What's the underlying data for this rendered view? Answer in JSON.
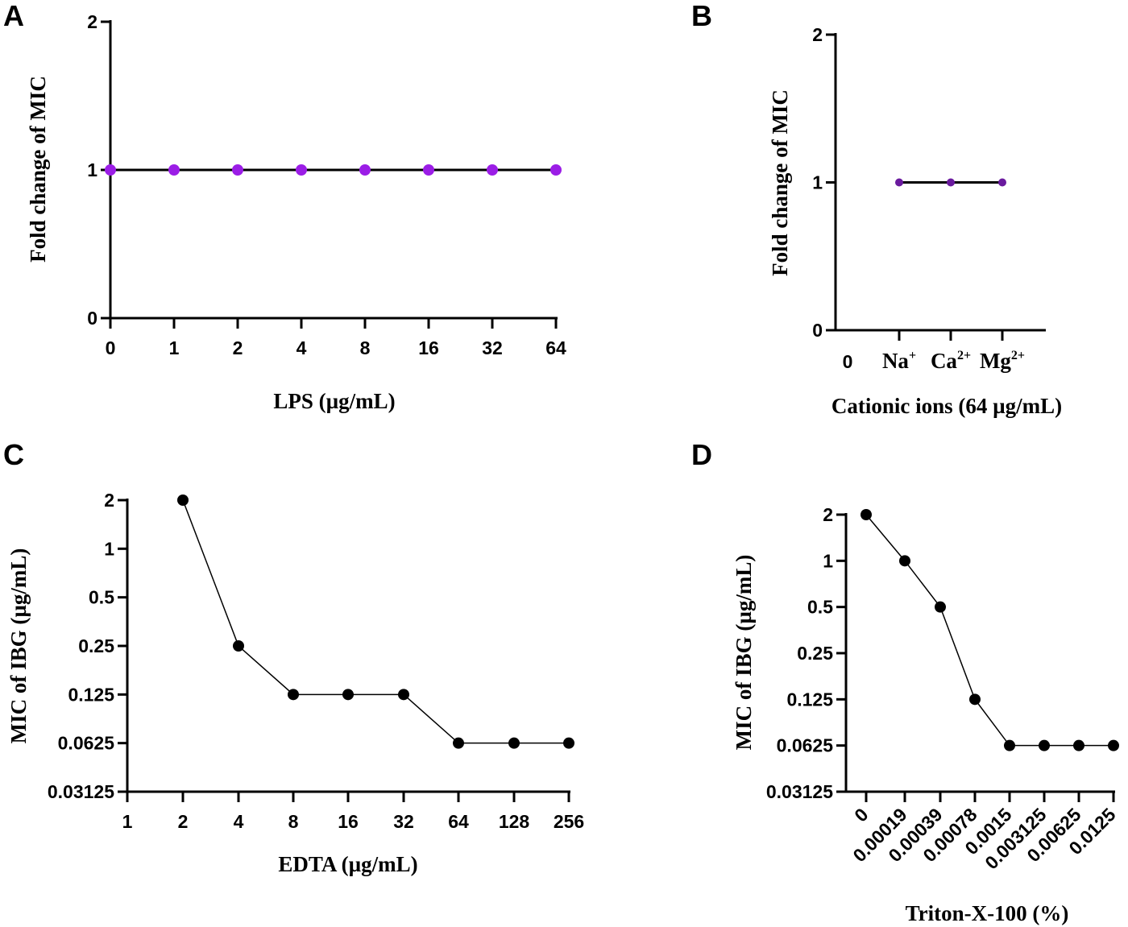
{
  "chart_data": [
    {
      "panel": "A",
      "type": "line",
      "xlabel": "LPS (µg/mL)",
      "ylabel": "Fold change of MIC",
      "categories": [
        "0",
        "1",
        "2",
        "4",
        "8",
        "16",
        "32",
        "64"
      ],
      "values": [
        1,
        1,
        1,
        1,
        1,
        1,
        1,
        1
      ],
      "yticks": [
        "0",
        "1",
        "2"
      ],
      "ylim": [
        0,
        2
      ],
      "color": "#9b1de6"
    },
    {
      "panel": "B",
      "type": "line",
      "xlabel": "Cationic ions (64 µg/mL)",
      "ylabel": "Fold change of MIC",
      "zero_label": "0",
      "categories": [
        {
          "base": "Na",
          "sup": "+"
        },
        {
          "base": "Ca",
          "sup": "2+"
        },
        {
          "base": "Mg",
          "sup": "2+"
        }
      ],
      "values": [
        1,
        1,
        1
      ],
      "yticks": [
        "0",
        "1",
        "2"
      ],
      "ylim": [
        0,
        2
      ],
      "color": "#6a1a9e"
    },
    {
      "panel": "C",
      "type": "line",
      "yscale": "log2",
      "xlabel": "EDTA (µg/mL)",
      "ylabel": "MIC of IBG (µg/mL)",
      "categories": [
        "1",
        "2",
        "4",
        "8",
        "16",
        "32",
        "64",
        "128",
        "256"
      ],
      "x": [
        "2",
        "4",
        "8",
        "16",
        "32",
        "64",
        "128",
        "256"
      ],
      "values": [
        2,
        0.25,
        0.125,
        0.125,
        0.125,
        0.0625,
        0.0625,
        0.0625
      ],
      "yticks": [
        "0.03125",
        "0.0625",
        "0.125",
        "0.25",
        "0.5",
        "1",
        "2"
      ],
      "ylim": [
        0.03125,
        2
      ],
      "color": "#000000"
    },
    {
      "panel": "D",
      "type": "line",
      "yscale": "log2",
      "xlabel": "Triton-X-100 (%)",
      "ylabel": "MIC of IBG (µg/mL)",
      "categories": [
        "0",
        "0.00019",
        "0.00039",
        "0.00078",
        "0.0015",
        "0.003125",
        "0.00625",
        "0.0125"
      ],
      "values": [
        2,
        1,
        0.5,
        0.125,
        0.0625,
        0.0625,
        0.0625,
        0.0625
      ],
      "yticks": [
        "0.03125",
        "0.0625",
        "0.125",
        "0.25",
        "0.5",
        "1",
        "2"
      ],
      "ylim": [
        0.03125,
        2
      ],
      "color": "#000000"
    }
  ]
}
